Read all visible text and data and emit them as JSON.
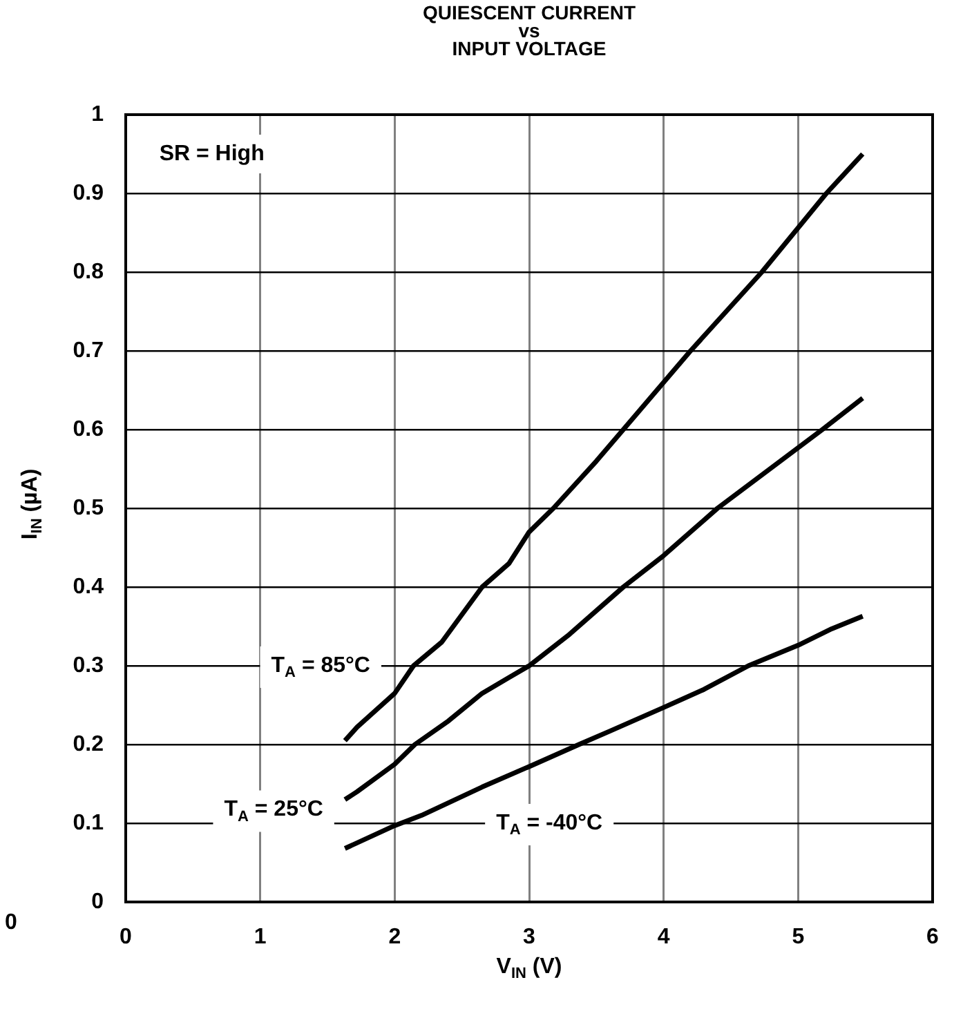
{
  "chart_data": {
    "type": "line",
    "title": "QUIESCENT CURRENT\nvs\nINPUT VOLTAGE",
    "xlabel": "V$_{IN}$ (V)",
    "ylabel": "I$_{IN}$ (µA)",
    "annotations": [
      "SR = High",
      "0"
    ],
    "xlim": [
      0,
      6
    ],
    "xticks": [
      0,
      1,
      2,
      3,
      4,
      5,
      6
    ],
    "ylim": [
      0,
      1
    ],
    "yticks": [
      0,
      0.1,
      0.2,
      0.3,
      0.4,
      0.5,
      0.6,
      0.7,
      0.8,
      0.9,
      1
    ],
    "grid": true,
    "legend": false,
    "marker": "none",
    "line_style": "solid",
    "series": [
      {
        "name": "T$_{A}$ = 85°C",
        "color": "#000000",
        "x": [
          1.63,
          1.72,
          2.0,
          2.14,
          2.35,
          2.65,
          2.85,
          3.0,
          3.18,
          3.5,
          3.7,
          4.2,
          4.73,
          5.21,
          5.48
        ],
        "values": [
          0.205,
          0.222,
          0.265,
          0.3,
          0.33,
          0.4,
          0.43,
          0.47,
          0.5,
          0.56,
          0.6,
          0.7,
          0.8,
          0.9,
          0.95
        ]
      },
      {
        "name": "T$_{A}$ = 25°C",
        "color": "#000000",
        "x": [
          1.63,
          1.72,
          2.0,
          2.15,
          2.4,
          2.65,
          2.85,
          3.0,
          3.3,
          3.7,
          4.0,
          4.4,
          5.18,
          5.48
        ],
        "values": [
          0.13,
          0.14,
          0.175,
          0.2,
          0.23,
          0.265,
          0.285,
          0.3,
          0.34,
          0.4,
          0.44,
          0.5,
          0.6,
          0.64
        ]
      },
      {
        "name": "T$_{A}$ = -40°C",
        "color": "#000000",
        "x": [
          1.63,
          2.0,
          2.2,
          2.65,
          3.0,
          3.37,
          3.6,
          4.0,
          4.3,
          4.63,
          5.0,
          5.25,
          5.48
        ],
        "values": [
          0.068,
          0.097,
          0.11,
          0.146,
          0.172,
          0.2,
          0.217,
          0.247,
          0.27,
          0.3,
          0.326,
          0.347,
          0.363
        ]
      }
    ]
  }
}
